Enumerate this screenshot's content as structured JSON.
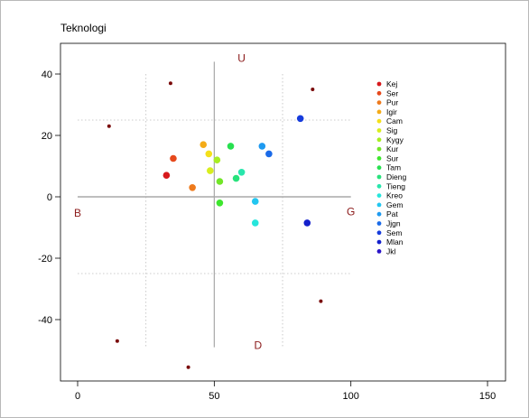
{
  "chart_data": {
    "type": "scatter",
    "title": "Teknologi",
    "xlabel": "",
    "ylabel": "",
    "xlim": [
      0,
      150
    ],
    "ylim": [
      -60,
      45
    ],
    "x_ticks": [
      0,
      50,
      100,
      150
    ],
    "y_ticks": [
      -40,
      -20,
      0,
      20,
      40
    ],
    "grid": false,
    "axis_lines": {
      "horizontal_y": 0,
      "vertical_x": 50
    },
    "guide_lines": {
      "x": [
        25,
        75
      ],
      "y": [
        25,
        -25
      ]
    },
    "direction_labels": [
      {
        "text": "U",
        "x": 60,
        "y": 44
      },
      {
        "text": "B",
        "x": 0,
        "y": -6.5
      },
      {
        "text": "G",
        "x": 100,
        "y": -6
      },
      {
        "text": "D",
        "x": 66,
        "y": -49.5
      }
    ],
    "anchor_points": {
      "color": "#7a0a0a",
      "points": [
        {
          "x": 34,
          "y": 37
        },
        {
          "x": 86,
          "y": 35
        },
        {
          "x": 11.5,
          "y": 23
        },
        {
          "x": 89,
          "y": -34
        },
        {
          "x": 14.5,
          "y": -47
        },
        {
          "x": 40.5,
          "y": -55.5
        }
      ]
    },
    "legend_position": "right",
    "series": [
      {
        "name": "Kej",
        "color": "#d7191c",
        "x": 32.5,
        "y": 7
      },
      {
        "name": "Ser",
        "color": "#e6491c",
        "x": 35,
        "y": 12.5
      },
      {
        "name": "Pur",
        "color": "#ee7a1c",
        "x": 42,
        "y": 3
      },
      {
        "name": "Igir",
        "color": "#f4ab18",
        "x": 46,
        "y": 17
      },
      {
        "name": "Cam",
        "color": "#f4e01a",
        "x": 48,
        "y": 14
      },
      {
        "name": "Sig",
        "color": "#d8ee1e",
        "x": 48.5,
        "y": 8.5
      },
      {
        "name": "Kygy",
        "color": "#a8ee22",
        "x": 51,
        "y": 12
      },
      {
        "name": "Kur",
        "color": "#72e628",
        "x": 52,
        "y": 5
      },
      {
        "name": "Sur",
        "color": "#3ee62e",
        "x": 52,
        "y": -2
      },
      {
        "name": "Tam",
        "color": "#28e050",
        "x": 56,
        "y": 16.5
      },
      {
        "name": "Dieng",
        "color": "#28e27c",
        "x": 58,
        "y": 6
      },
      {
        "name": "Tieng",
        "color": "#28e6ac",
        "x": 60,
        "y": 8
      },
      {
        "name": "Kreo",
        "color": "#26e6dc",
        "x": 65,
        "y": -8.5
      },
      {
        "name": "Gem",
        "color": "#22c6f0",
        "x": 65,
        "y": -1.5
      },
      {
        "name": "Pat",
        "color": "#1e9af0",
        "x": 67.5,
        "y": 16.5
      },
      {
        "name": "Jjgn",
        "color": "#1a6ae8",
        "x": 70,
        "y": 14
      },
      {
        "name": "Sem",
        "color": "#163cdc",
        "x": 81.5,
        "y": 25.5
      },
      {
        "name": "Mlan",
        "color": "#1420cc",
        "x": 84,
        "y": -8.5
      },
      {
        "name": "Jkl",
        "color": "#2a14c8",
        "x": null,
        "y": null
      }
    ]
  }
}
